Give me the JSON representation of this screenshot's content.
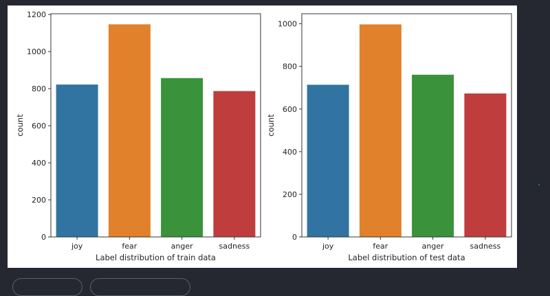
{
  "chart_data": [
    {
      "type": "bar",
      "categories": [
        "joy",
        "fear",
        "anger",
        "sadness"
      ],
      "values": [
        822,
        1147,
        857,
        787
      ],
      "colors": [
        "#3274a1",
        "#e1812c",
        "#3a923a",
        "#c03d3e"
      ],
      "title": "",
      "xlabel": "Label distribution of train data",
      "ylabel": "count",
      "ylim": [
        0,
        1204
      ],
      "yticks": [
        0,
        200,
        400,
        600,
        800,
        1000,
        1200
      ],
      "grid": false
    },
    {
      "type": "bar",
      "categories": [
        "joy",
        "fear",
        "anger",
        "sadness"
      ],
      "values": [
        714,
        997,
        761,
        673
      ],
      "colors": [
        "#3274a1",
        "#e1812c",
        "#3a923a",
        "#c03d3e"
      ],
      "title": "",
      "xlabel": "Label distribution of test data",
      "ylabel": "count",
      "ylim": [
        0,
        1047
      ],
      "yticks": [
        0,
        200,
        400,
        600,
        800,
        1000
      ],
      "grid": false
    }
  ]
}
